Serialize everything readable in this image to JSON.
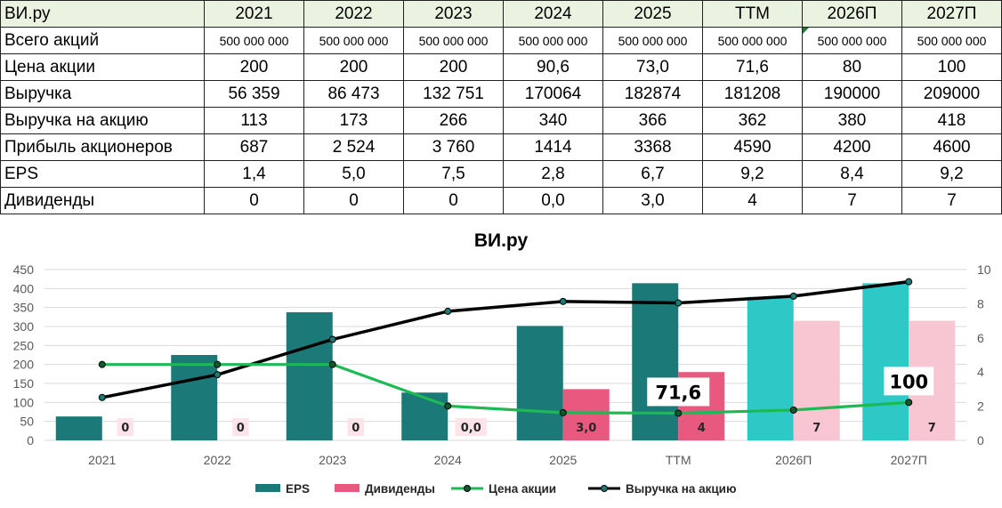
{
  "table": {
    "corner": "ВИ.ру",
    "columns": [
      "2021",
      "2022",
      "2023",
      "2024",
      "2025",
      "TTM",
      "2026П",
      "2027П"
    ],
    "rows": [
      {
        "label": "Всего акций",
        "small": true,
        "cells": [
          "500 000 000",
          "500 000 000",
          "500 000 000",
          "500 000 000",
          "500 000 000",
          "500 000 000",
          "500 000 000",
          "500 000 000"
        ]
      },
      {
        "label": "Цена акции",
        "cells": [
          "200",
          "200",
          "200",
          "90,6",
          "73,0",
          "71,6",
          "80",
          "100"
        ]
      },
      {
        "label": "Выручка",
        "cells": [
          "56 359",
          "86 473",
          "132 751",
          "170064",
          "182874",
          "181208",
          "190000",
          "209000"
        ]
      },
      {
        "label": "Выручка на акцию",
        "cells": [
          "113",
          "173",
          "266",
          "340",
          "366",
          "362",
          "380",
          "418"
        ]
      },
      {
        "label": "Прибыль акционеров",
        "cells": [
          "687",
          "2 524",
          "3 760",
          "1414",
          "3368",
          "4590",
          "4200",
          "4600"
        ]
      },
      {
        "label": "EPS",
        "cells": [
          "1,4",
          "5,0",
          "7,5",
          "2,8",
          "6,7",
          "9,2",
          "8,4",
          "9,2"
        ]
      },
      {
        "label": "Дивиденды",
        "cells": [
          "0",
          "0",
          "0",
          "0,0",
          "3,0",
          "4",
          "7",
          "7"
        ]
      }
    ]
  },
  "chart_data": {
    "type": "bar",
    "title": "ВИ.ру",
    "categories": [
      "2021",
      "2022",
      "2023",
      "2024",
      "2025",
      "TTM",
      "2026П",
      "2027П"
    ],
    "y_left": {
      "ylim": [
        0,
        450
      ],
      "ticks": [
        "0",
        "50",
        "100",
        "150",
        "200",
        "250",
        "300",
        "350",
        "400",
        "450"
      ]
    },
    "y_right": {
      "ylim": [
        0,
        10
      ],
      "ticks": [
        "0",
        "2",
        "4",
        "6",
        "8",
        "10"
      ]
    },
    "series": [
      {
        "name": "EPS",
        "kind": "bar",
        "axis": "right",
        "values": [
          1.4,
          5.0,
          7.5,
          2.8,
          6.7,
          9.2,
          8.4,
          9.2
        ],
        "colors": [
          "#1b7a77",
          "#1b7a77",
          "#1b7a77",
          "#1b7a77",
          "#1b7a77",
          "#1b7a77",
          "#2ec8c6",
          "#2ec8c6"
        ]
      },
      {
        "name": "Дивиденды",
        "kind": "bar",
        "axis": "right",
        "values": [
          0,
          0,
          0,
          0.0,
          3.0,
          4,
          7,
          7
        ],
        "labels": [
          "0",
          "0",
          "0",
          "0,0",
          "3,0",
          "4",
          "7",
          "7"
        ],
        "colors": [
          "#e9587e",
          "#e9587e",
          "#e9587e",
          "#e9587e",
          "#e9587e",
          "#e9587e",
          "#f8c6d3",
          "#f8c6d3"
        ]
      },
      {
        "name": "Цена акции",
        "kind": "line",
        "axis": "left",
        "color": "#1db954",
        "values": [
          200,
          200,
          200,
          90.6,
          73.0,
          71.6,
          80,
          100
        ]
      },
      {
        "name": "Выручка на акцию",
        "kind": "line",
        "axis": "left",
        "color": "#000000",
        "values": [
          113,
          173,
          266,
          340,
          366,
          362,
          380,
          418
        ]
      }
    ],
    "callouts": [
      {
        "category": "TTM",
        "text": "71,6"
      },
      {
        "category": "2027П",
        "text": "100"
      }
    ],
    "legend": "bottom",
    "grid": true
  }
}
